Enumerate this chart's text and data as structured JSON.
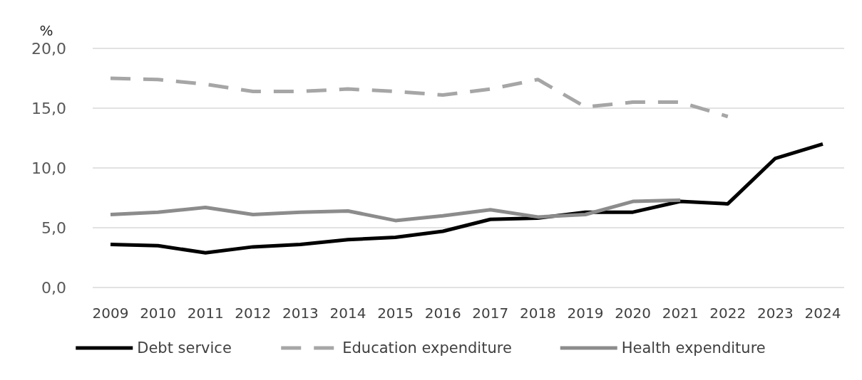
{
  "chart_data": {
    "type": "line",
    "ylabel": "%",
    "categories": [
      "2009",
      "2010",
      "2011",
      "2012",
      "2013",
      "2014",
      "2015",
      "2016",
      "2017",
      "2018",
      "2019",
      "2020",
      "2021",
      "2022",
      "2023",
      "2024"
    ],
    "series": [
      {
        "name": "Debt service",
        "color": "#000000",
        "line_style": "solid",
        "values": [
          3.6,
          3.5,
          2.9,
          3.4,
          3.6,
          4.0,
          4.2,
          4.7,
          5.7,
          5.8,
          6.3,
          6.3,
          7.2,
          7.0,
          10.8,
          12.0
        ]
      },
      {
        "name": "Education expenditure",
        "color": "#a6a6a6",
        "line_style": "dashed",
        "values": [
          17.5,
          17.4,
          17.0,
          16.4,
          16.4,
          16.6,
          16.4,
          16.1,
          16.6,
          17.4,
          15.1,
          15.5,
          15.5,
          14.3,
          null,
          null
        ]
      },
      {
        "name": "Health expenditure",
        "color": "#8c8c8c",
        "line_style": "solid",
        "values": [
          6.1,
          6.3,
          6.7,
          6.1,
          6.3,
          6.4,
          5.6,
          6.0,
          6.5,
          5.9,
          6.1,
          7.2,
          7.3,
          null,
          null,
          null
        ]
      }
    ],
    "ylim": [
      0,
      20
    ],
    "yticks": [
      {
        "value": 0,
        "label": "0,0"
      },
      {
        "value": 5,
        "label": "5,0"
      },
      {
        "value": 10,
        "label": "10,0"
      },
      {
        "value": 15,
        "label": "15,0"
      },
      {
        "value": 20,
        "label": "20,0"
      }
    ],
    "grid": "y",
    "legend": "bottom"
  }
}
